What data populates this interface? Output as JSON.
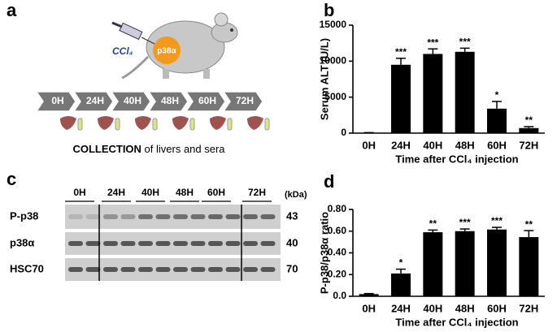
{
  "panel_labels": [
    "a",
    "b",
    "c",
    "d"
  ],
  "diagram": {
    "drug": "CCl₄",
    "protein": "p38α",
    "timepoints": [
      "0H",
      "24H",
      "40H",
      "48H",
      "60H",
      "72H"
    ],
    "caption_bold": "COLLECTION",
    "caption_rest": " of livers and sera"
  },
  "blot": {
    "lanes": [
      "0H",
      "24H",
      "40H",
      "48H",
      "60H",
      "72H"
    ],
    "unit": "(kDa)",
    "rows": [
      {
        "label": "P-p38",
        "kda": 43
      },
      {
        "label": "p38α",
        "kda": 40
      },
      {
        "label": "HSC70",
        "kda": 70
      }
    ]
  },
  "chart_data": [
    {
      "type": "bar",
      "ylabel": "Serum ALT (U/L)",
      "xlabel": "Time after CCl₄ injection",
      "categories": [
        "0H",
        "24H",
        "40H",
        "48H",
        "60H",
        "72H"
      ],
      "values": [
        50,
        9500,
        11000,
        11300,
        3400,
        700
      ],
      "errors": [
        20,
        900,
        700,
        500,
        1000,
        200
      ],
      "significance": [
        null,
        "***",
        "***",
        "***",
        "*",
        "**"
      ],
      "color": "#000000",
      "ylim": [
        0,
        15000
      ],
      "yticks": [
        0,
        5000,
        10000,
        15000
      ]
    },
    {
      "type": "bar",
      "ylabel": "P-p38/p38α ratio",
      "xlabel": "Time after CCl₄ injection",
      "categories": [
        "0H",
        "24H",
        "40H",
        "48H",
        "60H",
        "72H"
      ],
      "values": [
        0.02,
        0.21,
        0.59,
        0.6,
        0.615,
        0.545
      ],
      "errors": [
        0.005,
        0.04,
        0.02,
        0.02,
        0.02,
        0.06
      ],
      "significance": [
        null,
        "*",
        "**",
        "***",
        "***",
        "**"
      ],
      "color": "#000000",
      "ylim": [
        0,
        0.8
      ],
      "yticks": [
        {
          "value": 0,
          "label": "0.0"
        },
        {
          "value": 0.2,
          "label": "0.20"
        },
        {
          "value": 0.4,
          "label": "0.40"
        },
        {
          "value": 0.6,
          "label": "0.60"
        },
        {
          "value": 0.8,
          "label": "0.80"
        }
      ]
    }
  ]
}
